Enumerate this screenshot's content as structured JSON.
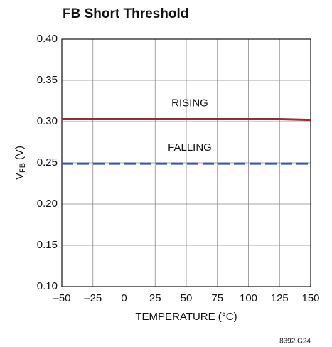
{
  "chart_data": {
    "type": "line",
    "title": "FB Short Threshold",
    "xlabel": "TEMPERATURE (°C)",
    "ylabel_parts": [
      "V",
      "FB",
      "(V)"
    ],
    "x": [
      -50,
      -25,
      0,
      25,
      50,
      75,
      100,
      125,
      150
    ],
    "series": [
      {
        "name": "RISING",
        "color": "#9e2a36",
        "dashed": false,
        "values": [
          0.303,
          0.303,
          0.303,
          0.303,
          0.303,
          0.303,
          0.303,
          0.303,
          0.302
        ]
      },
      {
        "name": "FALLING",
        "color": "#3d55a3",
        "dashed": true,
        "values": [
          0.249,
          0.249,
          0.249,
          0.249,
          0.249,
          0.249,
          0.249,
          0.249,
          0.249
        ]
      }
    ],
    "xlim": [
      -50,
      150
    ],
    "xticks": [
      {
        "value": -50,
        "label": "–50"
      },
      {
        "value": -25,
        "label": "–25"
      },
      0,
      25,
      50,
      75,
      100,
      125,
      150
    ],
    "ylim": [
      0.1,
      0.4
    ],
    "yticks": [
      {
        "value": 0.1,
        "label": "0.10"
      },
      {
        "value": 0.15,
        "label": "0.15"
      },
      {
        "value": 0.2,
        "label": "0.20"
      },
      {
        "value": 0.25,
        "label": "0.25"
      },
      {
        "value": 0.3,
        "label": "0.30"
      },
      {
        "value": 0.35,
        "label": "0.35"
      },
      {
        "value": 0.4,
        "label": "0.40"
      }
    ],
    "grid": true,
    "footnote": "8392 G24"
  }
}
